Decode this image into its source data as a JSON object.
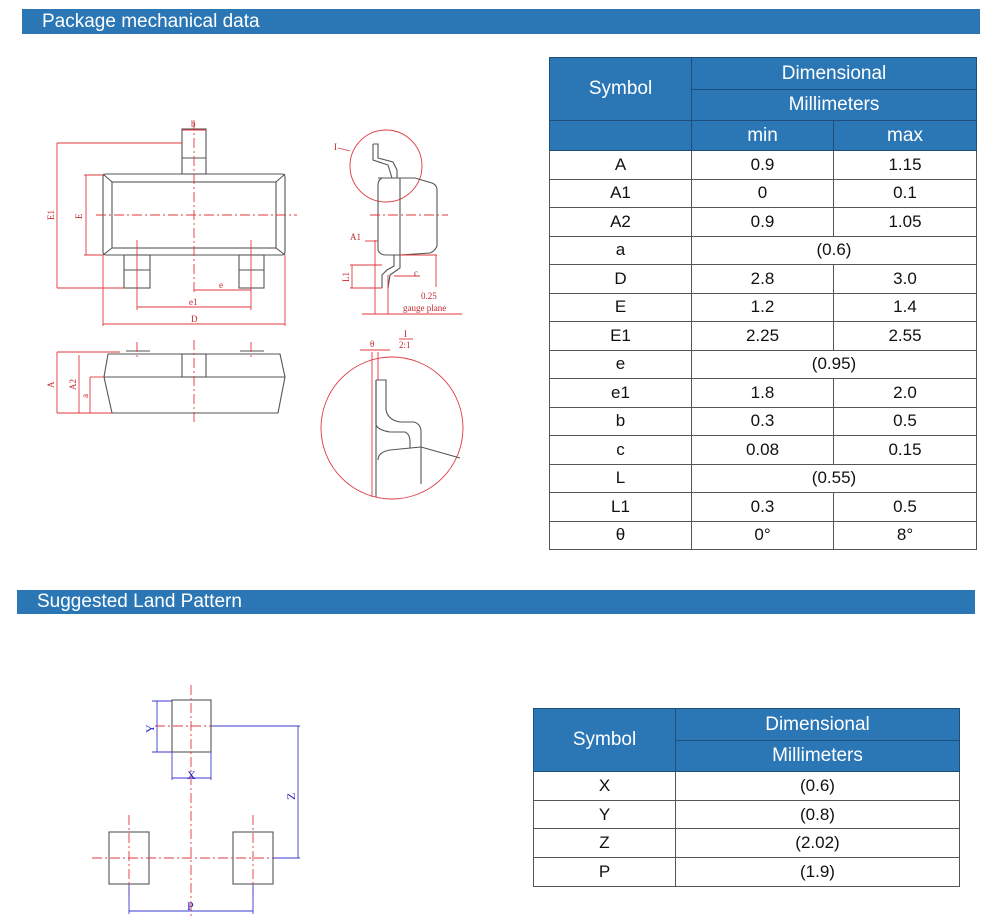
{
  "sections": {
    "mechanical_title": "Package mechanical data",
    "land_title": "Suggested Land Pattern"
  },
  "colors": {
    "header_bg": "#2b77b6",
    "drawing_red": "#e0383e",
    "drawing_blue": "#3a3ad0"
  },
  "mech_table": {
    "symbol_header": "Symbol",
    "dim_header": "Dimensional",
    "unit_header": "Millimeters",
    "min_header": "min",
    "max_header": "max",
    "rows": [
      {
        "symbol": "A",
        "min": "0.9",
        "max": "1.15"
      },
      {
        "symbol": "A1",
        "min": "0",
        "max": "0.1"
      },
      {
        "symbol": "A2",
        "min": "0.9",
        "max": "1.05"
      },
      {
        "symbol": "a",
        "nominal": "(0.6)"
      },
      {
        "symbol": "D",
        "min": "2.8",
        "max": "3.0"
      },
      {
        "symbol": "E",
        "min": "1.2",
        "max": "1.4"
      },
      {
        "symbol": "E1",
        "min": "2.25",
        "max": "2.55"
      },
      {
        "symbol": "e",
        "nominal": "(0.95)"
      },
      {
        "symbol": "e1",
        "min": "1.8",
        "max": "2.0"
      },
      {
        "symbol": "b",
        "min": "0.3",
        "max": "0.5"
      },
      {
        "symbol": "c",
        "min": "0.08",
        "max": "0.15"
      },
      {
        "symbol": "L",
        "nominal": "(0.55)"
      },
      {
        "symbol": "L1",
        "min": "0.3",
        "max": "0.5"
      },
      {
        "symbol": "θ",
        "min": "0°",
        "max": "8°"
      }
    ]
  },
  "land_table": {
    "symbol_header": "Symbol",
    "dim_header": "Dimensional",
    "unit_header": "Millimeters",
    "rows": [
      {
        "symbol": "X",
        "value": "(0.6)"
      },
      {
        "symbol": "Y",
        "value": "(0.8)"
      },
      {
        "symbol": "Z",
        "value": "(2.02)"
      },
      {
        "symbol": "P",
        "value": "(1.9)"
      }
    ]
  },
  "drawing_labels": {
    "b": "b",
    "E1": "E1",
    "E": "E",
    "e": "e",
    "e1": "e1",
    "D": "D",
    "A": "A",
    "A2": "A2",
    "a": "a",
    "A1": "A1",
    "L1": "L1",
    "c": "c",
    "gauge_value": "0.25",
    "gauge_text": "gauge plane",
    "detail": "I",
    "theta": "θ",
    "scale": "2:1"
  },
  "land_labels": {
    "X": "X",
    "Y": "Y",
    "Z": "Z",
    "P": "P"
  }
}
